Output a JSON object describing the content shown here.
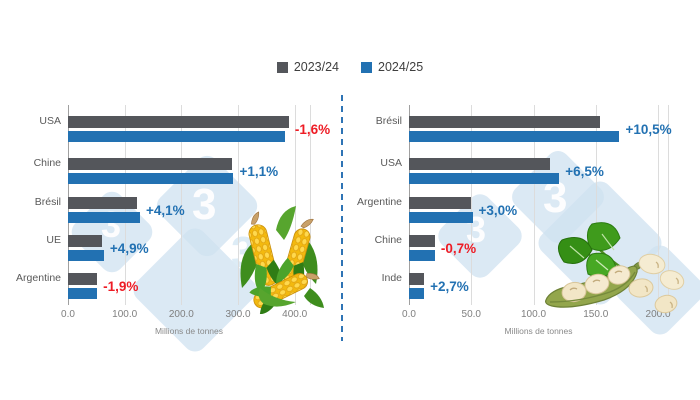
{
  "legend": {
    "series": [
      {
        "label": "2023/24",
        "color": "#54565b"
      },
      {
        "label": "2024/25",
        "color": "#2271b2"
      }
    ]
  },
  "colors": {
    "positive": "#2271b2",
    "negative": "#ee1c25",
    "bar_2023": "#54565b",
    "bar_2024": "#2271b2"
  },
  "chart_data": [
    {
      "type": "bar",
      "name": "corn-production",
      "orientation": "horizontal",
      "categories": [
        "USA",
        "Chine",
        "Brésil",
        "UE",
        "Argentine"
      ],
      "series": [
        {
          "name": "2023/24",
          "values": [
            389.7,
            288.8,
            122.0,
            60.4,
            51.5
          ]
        },
        {
          "name": "2024/25",
          "values": [
            383.6,
            292.0,
            127.0,
            63.4,
            50.5
          ]
        }
      ],
      "change_labels": [
        "-1,6%",
        "+1,1%",
        "+4,1%",
        "+4,9%",
        "-1,9%"
      ],
      "change_directions": [
        "down",
        "up",
        "up",
        "up",
        "down"
      ],
      "xlabel": "Millions de tonnes",
      "ticks": [
        0,
        100,
        200,
        300,
        400
      ],
      "tick_labels": [
        "0.0",
        "100.0",
        "200.0",
        "300.0",
        "400.0"
      ],
      "xlim": [
        0,
        427
      ],
      "grid": true,
      "legend_position": "top"
    },
    {
      "type": "bar",
      "name": "soybean-production",
      "orientation": "horizontal",
      "categories": [
        "Brésil",
        "USA",
        "Argentine",
        "Chine",
        "Inde"
      ],
      "series": [
        {
          "name": "2023/24",
          "values": [
            153.0,
            113.3,
            49.5,
            20.8,
            11.8
          ]
        },
        {
          "name": "2024/25",
          "values": [
            169.0,
            120.7,
            51.0,
            20.7,
            12.1
          ]
        }
      ],
      "change_labels": [
        "+10,5%",
        "+6,5%",
        "+3,0%",
        "-0,7%",
        "+2,7%"
      ],
      "change_directions": [
        "up",
        "up",
        "up",
        "down",
        "up"
      ],
      "xlabel": "Millions de tonnes",
      "ticks": [
        0,
        50,
        100,
        150,
        200
      ],
      "tick_labels": [
        "0.0",
        "50.0",
        "100.0",
        "150.0",
        "200.0"
      ],
      "xlim": [
        0,
        208
      ],
      "grid": true,
      "legend_position": "top"
    }
  ],
  "watermark": {
    "glyph": "3"
  }
}
